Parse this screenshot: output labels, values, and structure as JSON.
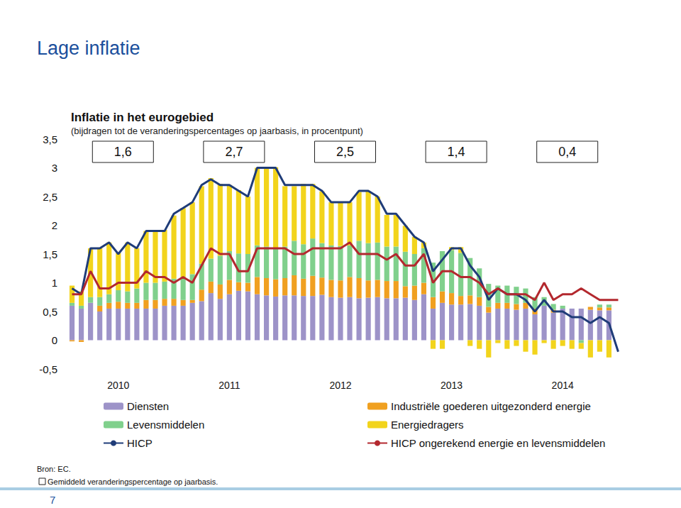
{
  "header": {
    "title": "Lage inflatie",
    "page": "7"
  },
  "footer": {
    "source": "Bron: EC.",
    "note": "Gemiddeld veranderingspercentage op jaarbasis."
  },
  "chart_data": {
    "type": "bar",
    "title": "Inflatie in het eurogebied",
    "subtitle": "(bijdragen tot de veranderingspercentages op jaarbasis, in procentpunt)",
    "annotations": [
      "1,6",
      "2,7",
      "2,5",
      "1,4",
      "0,4"
    ],
    "categories": [
      null,
      null,
      null,
      null,
      null,
      "2010",
      null,
      null,
      null,
      null,
      null,
      null,
      null,
      null,
      null,
      null,
      null,
      "2011",
      null,
      null,
      null,
      null,
      null,
      null,
      null,
      null,
      null,
      null,
      null,
      "2012",
      null,
      null,
      null,
      null,
      null,
      null,
      null,
      null,
      null,
      null,
      null,
      "2013",
      null,
      null,
      null,
      null,
      null,
      null,
      null,
      null,
      null,
      null,
      null,
      "2014",
      null,
      null,
      null,
      null,
      null,
      null
    ],
    "series": [
      {
        "name": "Diensten",
        "type": "bar",
        "color": "#9d93c8",
        "values": [
          0.6,
          0.55,
          0.65,
          0.5,
          0.55,
          0.55,
          0.55,
          0.55,
          0.55,
          0.55,
          0.6,
          0.6,
          0.6,
          0.65,
          0.68,
          0.82,
          0.72,
          0.8,
          0.86,
          0.85,
          0.8,
          0.78,
          0.76,
          0.78,
          0.78,
          0.77,
          0.77,
          0.79,
          0.75,
          0.74,
          0.75,
          0.73,
          0.74,
          0.75,
          0.73,
          0.73,
          0.74,
          0.7,
          0.8,
          0.55,
          0.65,
          0.62,
          0.62,
          0.63,
          0.6,
          0.48,
          0.55,
          0.55,
          0.53,
          0.55,
          0.45,
          0.6,
          0.48,
          0.55,
          0.55,
          0.55,
          0.53,
          0.52,
          0.52,
          null
        ]
      },
      {
        "name": "Industriële goederen uitgezonderd energie",
        "type": "bar",
        "color": "#f0a020",
        "values": [
          -0.02,
          -0.03,
          0.0,
          0.1,
          0.1,
          0.12,
          0.1,
          0.1,
          0.15,
          0.15,
          0.12,
          0.12,
          0.1,
          0.05,
          0.2,
          0.2,
          0.25,
          0.25,
          0.15,
          0.15,
          0.3,
          0.3,
          0.3,
          0.3,
          0.35,
          0.3,
          0.35,
          0.3,
          0.3,
          0.3,
          0.35,
          0.35,
          0.3,
          0.3,
          0.3,
          0.3,
          0.2,
          0.25,
          0.2,
          0.2,
          0.2,
          0.2,
          0.15,
          0.15,
          0.15,
          0.1,
          0.1,
          0.1,
          0.1,
          0.1,
          0.1,
          0.0,
          0.05,
          0.0,
          0.0,
          0.0,
          0.05,
          0.05,
          0.05,
          null
        ]
      },
      {
        "name": "Levensmiddelen",
        "type": "bar",
        "color": "#80d08c",
        "values": [
          0.05,
          0.05,
          0.1,
          0.15,
          0.15,
          0.2,
          0.2,
          0.25,
          0.3,
          0.3,
          0.3,
          0.35,
          0.4,
          0.45,
          0.45,
          0.4,
          0.5,
          0.5,
          0.5,
          0.5,
          0.55,
          0.55,
          0.55,
          0.55,
          0.6,
          0.6,
          0.65,
          0.6,
          0.6,
          0.6,
          0.55,
          0.65,
          0.65,
          0.65,
          0.6,
          0.6,
          0.6,
          0.55,
          0.6,
          0.6,
          0.7,
          0.75,
          0.75,
          0.65,
          0.5,
          0.4,
          0.3,
          0.3,
          0.3,
          0.25,
          0.2,
          0.15,
          0.1,
          0.05,
          0.0,
          -0.05,
          0.0,
          0.05,
          0.05,
          null
        ]
      },
      {
        "name": "Energiedragers",
        "type": "bar",
        "color": "#f2d41c",
        "values": [
          0.3,
          0.25,
          0.85,
          0.85,
          0.9,
          0.65,
          0.85,
          0.7,
          0.9,
          0.9,
          0.9,
          1.1,
          1.2,
          1.25,
          1.35,
          1.4,
          1.25,
          1.15,
          1.1,
          1.0,
          1.35,
          1.35,
          1.4,
          1.05,
          0.95,
          1.05,
          0.95,
          0.9,
          0.75,
          0.75,
          0.75,
          0.85,
          0.9,
          0.8,
          0.55,
          0.55,
          0.45,
          0.3,
          0.1,
          -0.15,
          -0.15,
          0.05,
          0.1,
          -0.1,
          -0.15,
          -0.3,
          -0.05,
          -0.15,
          -0.1,
          -0.2,
          -0.25,
          -0.05,
          -0.15,
          -0.1,
          -0.15,
          -0.1,
          -0.3,
          -0.2,
          -0.3,
          null
        ]
      },
      {
        "name": "HICP",
        "type": "line",
        "color": "#1f3c78",
        "marker": "none",
        "line_style": "solid",
        "values": [
          0.9,
          0.8,
          1.6,
          1.6,
          1.7,
          1.5,
          1.7,
          1.6,
          1.9,
          1.9,
          1.9,
          2.2,
          2.3,
          2.4,
          2.7,
          2.8,
          2.7,
          2.7,
          2.6,
          2.5,
          3.0,
          3.0,
          3.0,
          2.7,
          2.7,
          2.7,
          2.7,
          2.6,
          2.4,
          2.4,
          2.4,
          2.6,
          2.6,
          2.5,
          2.2,
          2.2,
          2.0,
          1.8,
          1.7,
          1.2,
          1.4,
          1.6,
          1.6,
          1.3,
          1.1,
          0.7,
          0.9,
          0.8,
          0.8,
          0.7,
          0.5,
          0.7,
          0.5,
          0.5,
          0.4,
          0.4,
          0.3,
          0.4,
          0.3,
          -0.2
        ]
      },
      {
        "name": "HICP ongerekend energie en levensmiddelen",
        "type": "line",
        "color": "#b3282e",
        "marker": "none",
        "line_style": "solid",
        "values": [
          0.8,
          0.8,
          1.2,
          0.9,
          0.9,
          1.0,
          1.0,
          1.0,
          1.2,
          1.1,
          1.1,
          1.0,
          1.1,
          1.0,
          1.3,
          1.6,
          1.5,
          1.5,
          1.2,
          1.2,
          1.6,
          1.6,
          1.6,
          1.6,
          1.5,
          1.5,
          1.6,
          1.6,
          1.6,
          1.6,
          1.7,
          1.5,
          1.5,
          1.5,
          1.4,
          1.5,
          1.3,
          1.3,
          1.5,
          1.0,
          1.2,
          1.2,
          1.1,
          1.1,
          1.0,
          0.8,
          0.9,
          0.8,
          0.8,
          0.8,
          0.7,
          1.0,
          0.7,
          0.8,
          0.8,
          0.9,
          0.8,
          0.7,
          0.7,
          0.7
        ]
      }
    ],
    "ylim": [
      -0.5,
      3.5
    ],
    "yticks": [
      {
        "value": -0.5,
        "label": "-0,5"
      },
      0,
      {
        "value": 0.5,
        "label": "0,5"
      },
      1,
      {
        "value": 1.5,
        "label": "1,5"
      },
      2,
      {
        "value": 2.5,
        "label": "2,5"
      },
      3,
      {
        "value": 3.5,
        "label": "3,5"
      }
    ],
    "grid": false,
    "stacked": true,
    "legend": "bottom"
  }
}
